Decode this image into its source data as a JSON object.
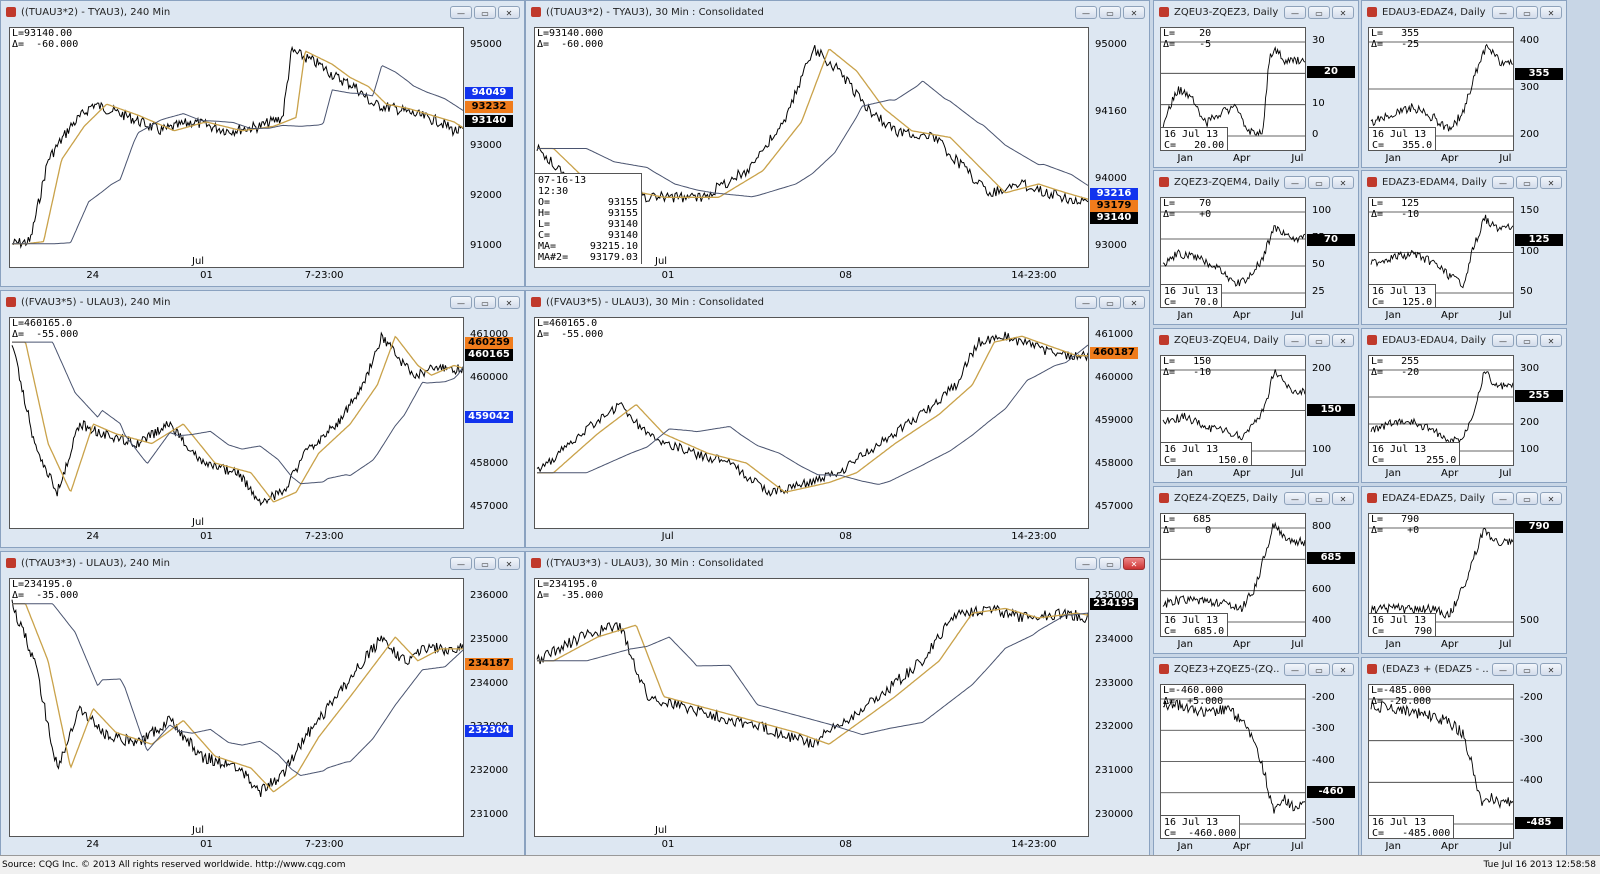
{
  "footer": {
    "source": "Source: CQG Inc. © 2013 All rights reserved worldwide. http://www.cqg.com",
    "datetime": "Tue Jul 16 2013 12:58:58"
  },
  "colors": {
    "black_label": "#000000",
    "blue_label": "#1133ee",
    "orange_label": "#f07c1c",
    "ma_fast": "#c9a24a",
    "ma_slow": "#4a5470"
  },
  "windows": [
    {
      "id": "w1",
      "title": "((TUAU3*2) - TYAU3), 240 Min",
      "info": [
        "L=93140.00",
        "Δ=  -60.000"
      ],
      "yticks": [
        "95000",
        "94000",
        "93000",
        "92000",
        "91000"
      ],
      "xticks": [
        "24",
        "01",
        "7-23:00"
      ],
      "xtop": "Jul",
      "labels": [
        {
          "text": "94049",
          "color": "blue"
        },
        {
          "text": "93232",
          "color": "orange"
        },
        {
          "text": "93140",
          "color": "black"
        }
      ],
      "series_shape": "w1"
    },
    {
      "id": "w2",
      "title": "((TUAU3*2) - TYAU3), 30 Min : Consolidated",
      "info": [
        "L=93140.000",
        "Δ=  -60.000"
      ],
      "yticks": [
        "95000",
        "94160",
        "94000",
        "93000"
      ],
      "xticks": [
        "01",
        "08",
        "14-23:00"
      ],
      "xtop": "Jul",
      "labels": [
        {
          "text": "93216",
          "color": "blue"
        },
        {
          "text": "93179",
          "color": "orange"
        },
        {
          "text": "93140",
          "color": "black"
        }
      ],
      "ohlc": [
        {
          "k": "07-16-13",
          "v": ""
        },
        {
          "k": "12:30",
          "v": ""
        },
        {
          "k": "O=",
          "v": "93155"
        },
        {
          "k": "H=",
          "v": "93155"
        },
        {
          "k": "L=",
          "v": "93140"
        },
        {
          "k": "C=",
          "v": "93140"
        },
        {
          "k": "MA=",
          "v": "93215.10"
        },
        {
          "k": "MA#2=",
          "v": "93179.03"
        }
      ],
      "series_shape": "w2"
    },
    {
      "id": "w3",
      "title": "ZQEU3-ZQEZ3, Daily",
      "info": [
        "L=    20",
        "Δ=    -5"
      ],
      "yticks": [
        "30",
        "20",
        "10",
        "0"
      ],
      "xticks": [
        "Jan",
        "Apr",
        "Jul"
      ],
      "labels": [
        {
          "text": "20",
          "color": "black"
        }
      ],
      "datebox": [
        "16 Jul 13",
        "C=   20.00"
      ],
      "series_shape": "d1"
    },
    {
      "id": "w4",
      "title": "EDAU3-EDAZ4, Daily",
      "info": [
        "L=   355",
        "Δ=   -25"
      ],
      "yticks": [
        "400",
        "300",
        "200"
      ],
      "xticks": [
        "Jan",
        "Apr",
        "Jul"
      ],
      "labels": [
        {
          "text": "355",
          "color": "black"
        }
      ],
      "datebox": [
        "16 Jul 13",
        "C=   355.0"
      ],
      "series_shape": "d2"
    },
    {
      "id": "w5",
      "title": "ZQEZ3-ZQEM4, Daily",
      "info": [
        "L=    70",
        "Δ=    +0"
      ],
      "yticks": [
        "100",
        "75",
        "50",
        "25"
      ],
      "xticks": [
        "Jan",
        "Apr",
        "Jul"
      ],
      "labels": [
        {
          "text": "70",
          "color": "black"
        }
      ],
      "datebox": [
        "16 Jul 13",
        "C=   70.0"
      ],
      "series_shape": "d3"
    },
    {
      "id": "w6",
      "title": "EDAZ3-EDAM4, Daily",
      "info": [
        "L=   125",
        "Δ=   -10"
      ],
      "yticks": [
        "150",
        "100",
        "50"
      ],
      "xticks": [
        "Jan",
        "Apr",
        "Jul"
      ],
      "labels": [
        {
          "text": "125",
          "color": "black"
        }
      ],
      "datebox": [
        "16 Jul 13",
        "C=   125.0"
      ],
      "series_shape": "d4"
    },
    {
      "id": "w7",
      "title": "((FVAU3*5) - ULAU3), 240 Min",
      "info": [
        "L=460165.0",
        "Δ=  -55.000"
      ],
      "yticks": [
        "461000",
        "460000",
        "459000",
        "458000",
        "457000"
      ],
      "xticks": [
        "24",
        "01",
        "7-23:00"
      ],
      "xtop": "Jul",
      "labels": [
        {
          "text": "460259",
          "color": "orange"
        },
        {
          "text": "460165",
          "color": "black"
        },
        {
          "text": "459042",
          "color": "blue"
        }
      ],
      "series_shape": "w3"
    },
    {
      "id": "w8",
      "title": "((FVAU3*5) - ULAU3), 30 Min : Consolidated",
      "info": [
        "L=460165.0",
        "Δ=  -55.000"
      ],
      "yticks": [
        "461000",
        "460000",
        "459000",
        "458000",
        "457000"
      ],
      "xticks": [
        "Jul",
        "08",
        "14-23:00"
      ],
      "labels": [
        {
          "text": "460187",
          "color": "orange"
        }
      ],
      "series_shape": "w4"
    },
    {
      "id": "w9",
      "title": "ZQEU3-ZQEU4, Daily",
      "info": [
        "L=   150",
        "Δ=   -10"
      ],
      "yticks": [
        "200",
        "150",
        "100"
      ],
      "xticks": [
        "Jan",
        "Apr",
        "Jul"
      ],
      "labels": [
        {
          "text": "150",
          "color": "black"
        }
      ],
      "datebox": [
        "16 Jul 13",
        "C=       150.0"
      ],
      "series_shape": "d5"
    },
    {
      "id": "w10",
      "title": "EDAU3-EDAU4, Daily",
      "info": [
        "L=   255",
        "Δ=   -20"
      ],
      "yticks": [
        "300",
        "255",
        "200",
        "100"
      ],
      "xticks": [
        "Jan",
        "Apr",
        "Jul"
      ],
      "labels": [
        {
          "text": "255",
          "color": "black"
        }
      ],
      "datebox": [
        "16 Jul 13",
        "C=       255.0"
      ],
      "series_shape": "d6"
    },
    {
      "id": "w11",
      "title": "ZQEZ4-ZQEZ5, Daily",
      "info": [
        "L=   685",
        "Δ=     0"
      ],
      "yticks": [
        "800",
        "685",
        "600",
        "400"
      ],
      "xticks": [
        "Jan",
        "Apr",
        "Jul"
      ],
      "labels": [
        {
          "text": "685",
          "color": "black"
        }
      ],
      "datebox": [
        "16 Jul 13",
        "C=   685.0"
      ],
      "series_shape": "d7"
    },
    {
      "id": "w12",
      "title": "EDAZ4-EDAZ5, Daily",
      "info": [
        "L=   790",
        "Δ=    +0"
      ],
      "yticks": [
        "790",
        "500"
      ],
      "xticks": [
        "Jan",
        "Apr",
        "Jul"
      ],
      "labels": [
        {
          "text": "790",
          "color": "black"
        }
      ],
      "datebox": [
        "16 Jul 13",
        "C=     790"
      ],
      "series_shape": "d8"
    },
    {
      "id": "w13",
      "title": "((TYAU3*3) - ULAU3), 240 Min",
      "info": [
        "L=234195.0",
        "Δ=  -35.000"
      ],
      "yticks": [
        "236000",
        "235000",
        "234000",
        "233000",
        "232000",
        "231000"
      ],
      "xticks": [
        "24",
        "01",
        "7-23:00"
      ],
      "xtop": "Jul",
      "labels": [
        {
          "text": "234187",
          "color": "orange"
        },
        {
          "text": "232304",
          "color": "blue"
        }
      ],
      "series_shape": "w5"
    },
    {
      "id": "w14",
      "title": "((TYAU3*3) - ULAU3), 30 Min : Consolidated",
      "info": [
        "L=234195.0",
        "Δ=  -35.000"
      ],
      "yticks": [
        "235000",
        "234000",
        "233000",
        "232000",
        "231000",
        "230000"
      ],
      "xticks": [
        "01",
        "08",
        "14-23:00"
      ],
      "xtop": "Jul",
      "labels": [
        {
          "text": "234195",
          "color": "black"
        }
      ],
      "series_shape": "w6"
    },
    {
      "id": "w15",
      "title": "ZQEZ3+ZQEZ5-(ZQ...",
      "info": [
        "L=-460.000",
        "Δ=  +5.000"
      ],
      "yticks": [
        "-200",
        "-300",
        "-400",
        "-460",
        "-500"
      ],
      "xticks": [
        "Jan",
        "Apr",
        "Jul"
      ],
      "labels": [
        {
          "text": "-460",
          "color": "black"
        }
      ],
      "datebox": [
        "16 Jul 13",
        "C=  -460.000"
      ],
      "series_shape": "d9"
    },
    {
      "id": "w16",
      "title": "(EDAZ3 + (EDAZ5 - ...",
      "info": [
        "L=-485.000",
        "Δ= -20.000"
      ],
      "yticks": [
        "-200",
        "-300",
        "-400",
        "-485"
      ],
      "xticks": [
        "Jan",
        "Apr",
        "Jul"
      ],
      "labels": [
        {
          "text": "-485",
          "color": "black"
        }
      ],
      "datebox": [
        "16 Jul 13",
        "C=   -485.000"
      ],
      "series_shape": "d10"
    }
  ]
}
